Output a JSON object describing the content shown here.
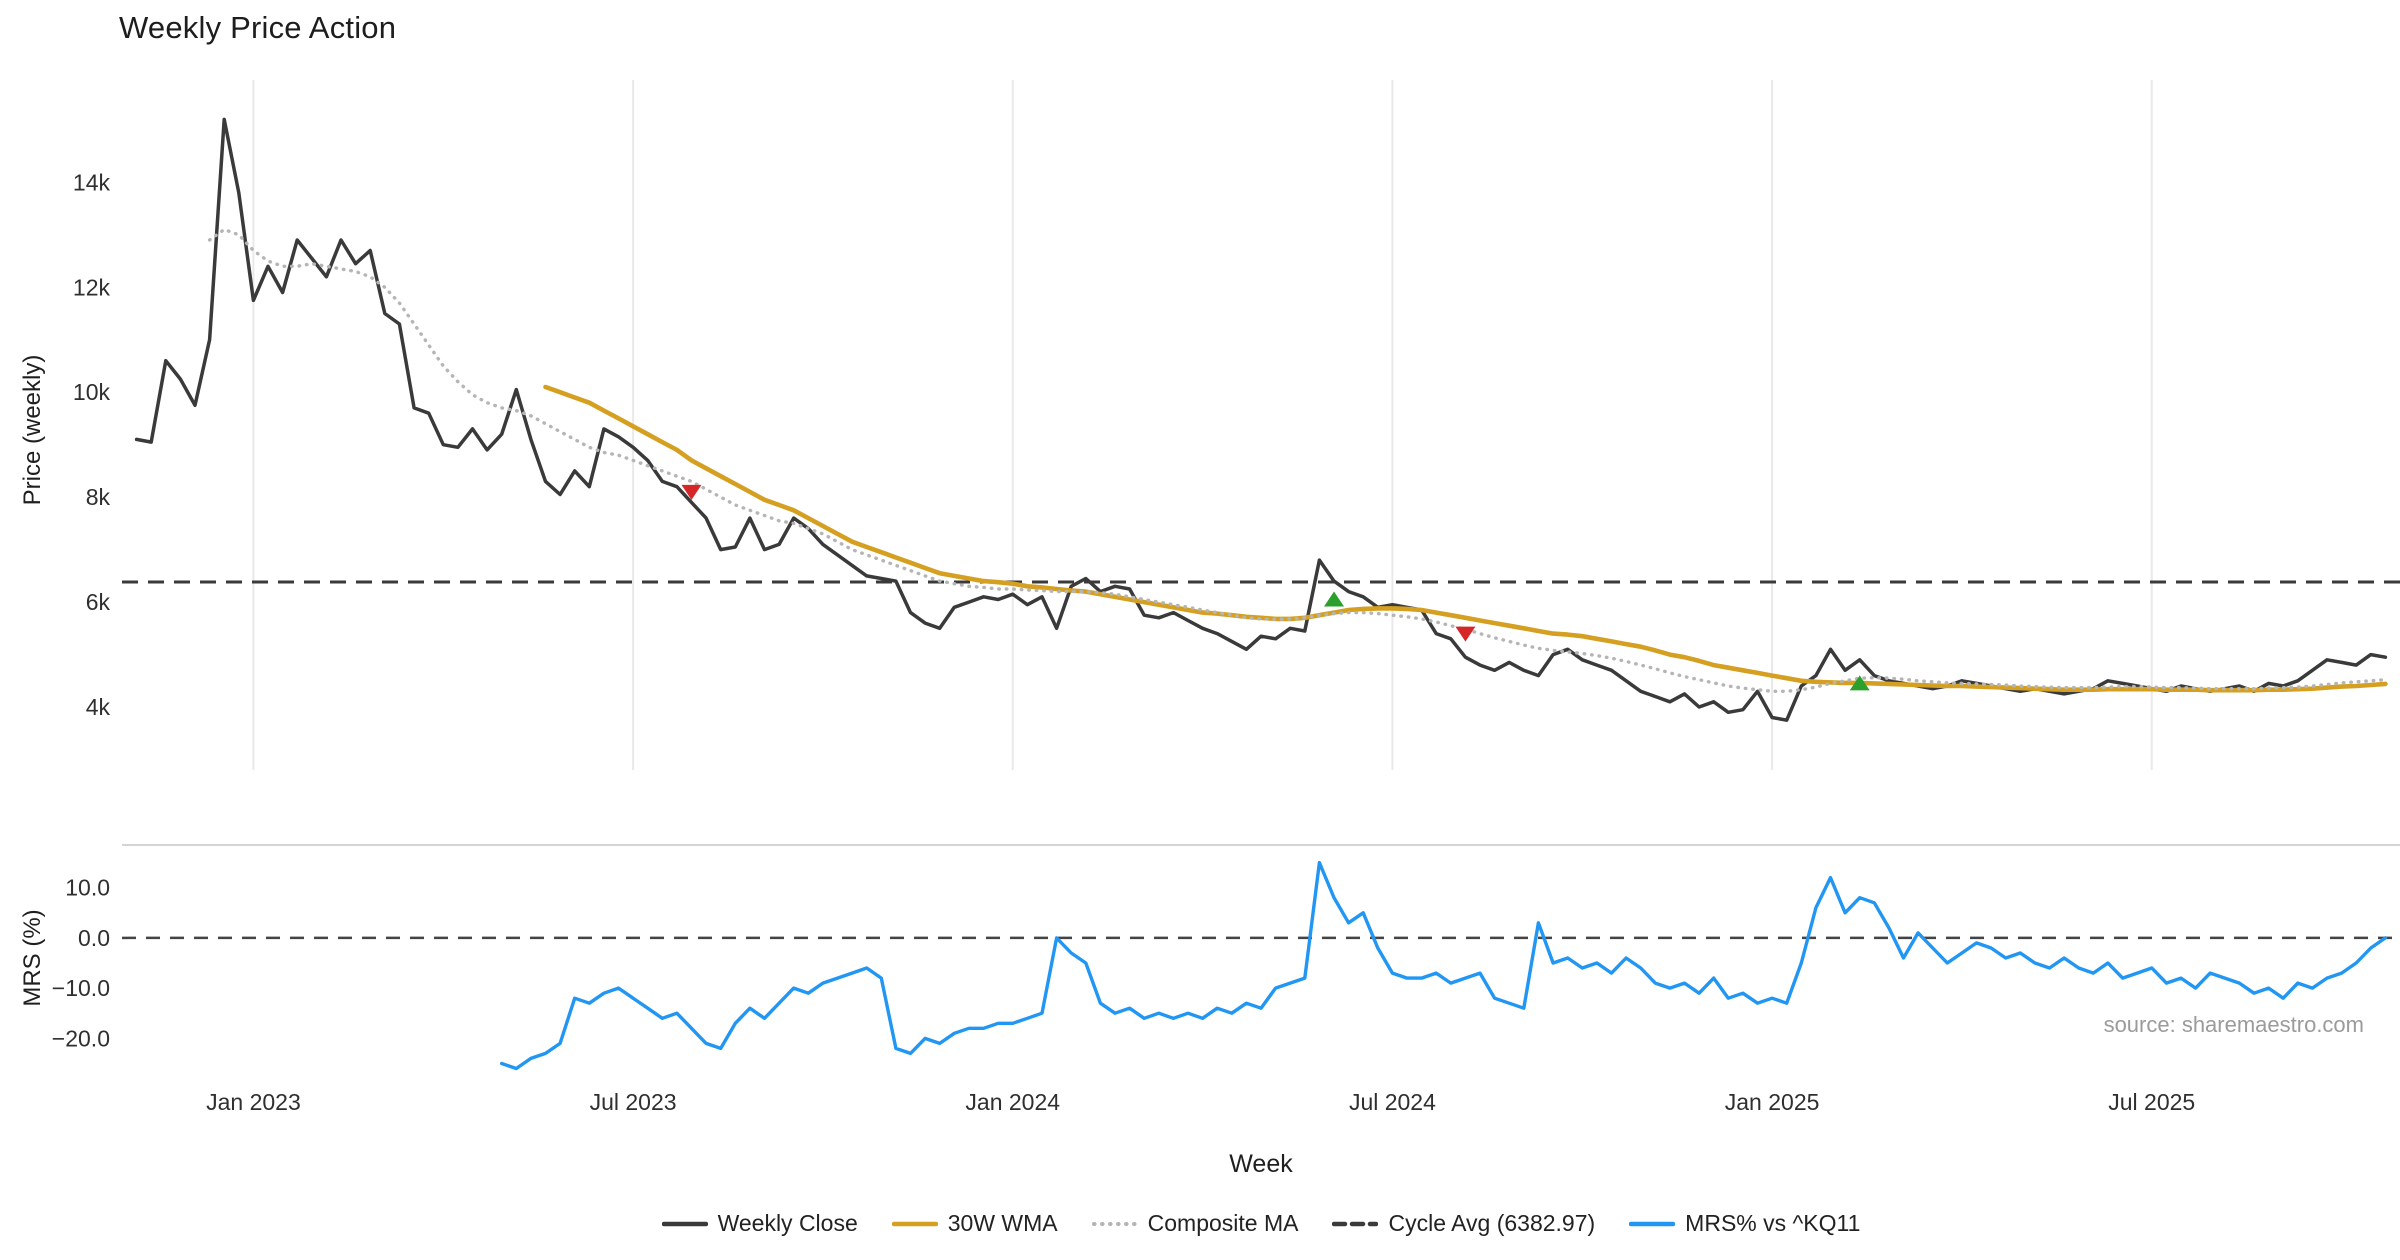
{
  "page": {
    "title": "Weekly Price Action",
    "source_note": "source: sharemaestro.com"
  },
  "axes": {
    "x_title": "Week",
    "price_axis_title": "Price (weekly)",
    "mrs_axis_title": "MRS (%)"
  },
  "legend": [
    {
      "label": "Weekly Close",
      "style": "solid",
      "color": "#3a3a3a"
    },
    {
      "label": "30W WMA",
      "style": "solid",
      "color": "#d5a021"
    },
    {
      "label": "Composite MA",
      "style": "dotted",
      "color": "#b5b5b5"
    },
    {
      "label": "Cycle Avg (6382.97)",
      "style": "dashed",
      "color": "#3a3a3a"
    },
    {
      "label": "MRS% vs ^KQ11",
      "style": "solid",
      "color": "#2196f3"
    }
  ],
  "chart_data": {
    "type": "line",
    "title": "Weekly Price Action",
    "xlabel": "Week",
    "x_unit": "week_index",
    "xlim": [
      0,
      156
    ],
    "x_ticks": [
      {
        "week": 9,
        "label": "Jan 2023"
      },
      {
        "week": 35,
        "label": "Jul 2023"
      },
      {
        "week": 61,
        "label": "Jan 2024"
      },
      {
        "week": 87,
        "label": "Jul 2024"
      },
      {
        "week": 113,
        "label": "Jan 2025"
      },
      {
        "week": 139,
        "label": "Jul 2025"
      }
    ],
    "panels": [
      {
        "name": "price",
        "ylabel": "Price (weekly)",
        "ylim": [
          2800,
          15950
        ],
        "grid_vertical": true,
        "yticks": [
          {
            "value": 4000,
            "label": "4k"
          },
          {
            "value": 6000,
            "label": "6k"
          },
          {
            "value": 8000,
            "label": "8k"
          },
          {
            "value": 10000,
            "label": "10k"
          },
          {
            "value": 12000,
            "label": "12k"
          },
          {
            "value": 14000,
            "label": "14k"
          }
        ],
        "cycle_avg": 6382.97,
        "series": [
          {
            "name": "Weekly Close",
            "color": "#3a3a3a",
            "style": "solid",
            "x_start": 1,
            "x_step": 1,
            "y": [
              9100,
              9050,
              10600,
              10250,
              9750,
              11000,
              15200,
              13800,
              11750,
              12400,
              11900,
              12900,
              12550,
              12200,
              12900,
              12450,
              12700,
              11500,
              11300,
              9700,
              9600,
              9000,
              8950,
              9300,
              8900,
              9200,
              10050,
              9100,
              8300,
              8050,
              8500,
              8200,
              9300,
              9150,
              8950,
              8700,
              8300,
              8200,
              7900,
              7600,
              7000,
              7050,
              7600,
              7000,
              7100,
              7600,
              7400,
              7100,
              6900,
              6700,
              6500,
              6450,
              6400,
              5800,
              5600,
              5500,
              5900,
              6000,
              6100,
              6050,
              6150,
              5950,
              6100,
              5500,
              6300,
              6450,
              6200,
              6300,
              6250,
              5750,
              5700,
              5800,
              5650,
              5500,
              5400,
              5250,
              5100,
              5350,
              5300,
              5500,
              5450,
              6800,
              6400,
              6200,
              6100,
              5900,
              5950,
              5900,
              5850,
              5400,
              5300,
              4950,
              4800,
              4700,
              4850,
              4700,
              4600,
              5000,
              5100,
              4900,
              4800,
              4700,
              4500,
              4300,
              4200,
              4100,
              4250,
              4000,
              4100,
              3900,
              3950,
              4300,
              3800,
              3750,
              4400,
              4600,
              5100,
              4700,
              4900,
              4600,
              4500,
              4450,
              4400,
              4350,
              4400,
              4500,
              4450,
              4400,
              4350,
              4300,
              4350,
              4300,
              4250,
              4300,
              4350,
              4500,
              4450,
              4400,
              4350,
              4300,
              4400,
              4350,
              4300,
              4350,
              4400,
              4300,
              4450,
              4400,
              4500,
              4700,
              4900,
              4850,
              4800,
              5000,
              4950
            ]
          },
          {
            "name": "30W WMA",
            "color": "#d5a021",
            "style": "solid",
            "x_start": 29,
            "x_step": 1,
            "y": [
              10100,
              10000,
              9900,
              9800,
              9650,
              9500,
              9350,
              9200,
              9050,
              8900,
              8700,
              8550,
              8400,
              8250,
              8100,
              7950,
              7850,
              7750,
              7600,
              7450,
              7300,
              7150,
              7050,
              6950,
              6850,
              6750,
              6650,
              6550,
              6500,
              6450,
              6400,
              6380,
              6350,
              6300,
              6280,
              6250,
              6220,
              6200,
              6150,
              6100,
              6050,
              6000,
              5950,
              5900,
              5850,
              5800,
              5780,
              5750,
              5720,
              5700,
              5680,
              5680,
              5700,
              5750,
              5800,
              5850,
              5870,
              5880,
              5880,
              5870,
              5850,
              5800,
              5750,
              5700,
              5650,
              5600,
              5550,
              5500,
              5450,
              5400,
              5380,
              5350,
              5300,
              5250,
              5200,
              5150,
              5080,
              5000,
              4950,
              4880,
              4800,
              4750,
              4700,
              4650,
              4600,
              4550,
              4500,
              4480,
              4470,
              4460,
              4460,
              4450,
              4440,
              4430,
              4420,
              4410,
              4400,
              4400,
              4390,
              4380,
              4370,
              4360,
              4350,
              4340,
              4330,
              4330,
              4330,
              4340,
              4340,
              4340,
              4340,
              4330,
              4330,
              4330,
              4320,
              4320,
              4320,
              4320,
              4330,
              4330,
              4340,
              4350,
              4370,
              4390,
              4400,
              4420,
              4440
            ]
          },
          {
            "name": "Composite MA",
            "color": "#b5b5b5",
            "style": "dotted",
            "x_start": 6,
            "x_step": 1,
            "y": [
              12900,
              13100,
              13000,
              12700,
              12500,
              12400,
              12400,
              12450,
              12400,
              12350,
              12300,
              12200,
              12000,
              11700,
              11300,
              10900,
              10500,
              10200,
              9950,
              9800,
              9700,
              9650,
              9550,
              9400,
              9250,
              9100,
              8950,
              8850,
              8800,
              8700,
              8600,
              8500,
              8400,
              8300,
              8150,
              8000,
              7850,
              7750,
              7650,
              7550,
              7500,
              7400,
              7300,
              7150,
              7000,
              6900,
              6800,
              6700,
              6600,
              6500,
              6400,
              6350,
              6300,
              6280,
              6250,
              6250,
              6230,
              6220,
              6200,
              6200,
              6200,
              6180,
              6150,
              6100,
              6050,
              6000,
              5950,
              5900,
              5850,
              5800,
              5750,
              5700,
              5680,
              5670,
              5680,
              5700,
              5750,
              5780,
              5800,
              5800,
              5780,
              5750,
              5720,
              5680,
              5620,
              5550,
              5480,
              5400,
              5320,
              5250,
              5180,
              5120,
              5080,
              5050,
              5020,
              4980,
              4930,
              4870,
              4800,
              4730,
              4650,
              4580,
              4520,
              4460,
              4400,
              4360,
              4330,
              4300,
              4300,
              4330,
              4380,
              4450,
              4500,
              4550,
              4560,
              4550,
              4530,
              4500,
              4480,
              4460,
              4450,
              4440,
              4430,
              4420,
              4400,
              4390,
              4380,
              4370,
              4370,
              4370,
              4380,
              4390,
              4390,
              4380,
              4370,
              4370,
              4360,
              4350,
              4350,
              4350,
              4350,
              4360,
              4370,
              4380,
              4400,
              4430,
              4460,
              4480,
              4500,
              4520
            ]
          }
        ],
        "markers": [
          {
            "type": "sell",
            "shape": "triangle-down",
            "color": "#d62728",
            "week": 39,
            "value": 8100
          },
          {
            "type": "buy",
            "shape": "triangle-up",
            "color": "#2ca02c",
            "week": 83,
            "value": 6050
          },
          {
            "type": "sell",
            "shape": "triangle-down",
            "color": "#d62728",
            "week": 92,
            "value": 5400
          },
          {
            "type": "buy",
            "shape": "triangle-up",
            "color": "#2ca02c",
            "week": 119,
            "value": 4450
          }
        ]
      },
      {
        "name": "mrs",
        "ylabel": "MRS (%)",
        "ylim": [
          -26.5,
          18.5
        ],
        "zero_line": 0,
        "yticks": [
          {
            "value": 10,
            "label": "10.0"
          },
          {
            "value": 0,
            "label": "0.0"
          },
          {
            "value": -10,
            "label": "−10.0"
          },
          {
            "value": -20,
            "label": "−20.0"
          }
        ],
        "series": [
          {
            "name": "MRS% vs ^KQ11",
            "color": "#2196f3",
            "style": "solid",
            "x_start": 26,
            "x_step": 1,
            "y": [
              -25,
              -26,
              -24,
              -23,
              -21,
              -12,
              -13,
              -11,
              -10,
              -12,
              -14,
              -16,
              -15,
              -18,
              -21,
              -22,
              -17,
              -14,
              -16,
              -13,
              -10,
              -11,
              -9,
              -8,
              -7,
              -6,
              -8,
              -22,
              -23,
              -20,
              -21,
              -19,
              -18,
              -18,
              -17,
              -17,
              -16,
              -15,
              0,
              -3,
              -5,
              -13,
              -15,
              -14,
              -16,
              -15,
              -16,
              -15,
              -16,
              -14,
              -15,
              -13,
              -14,
              -10,
              -9,
              -8,
              15,
              8,
              3,
              5,
              -2,
              -7,
              -8,
              -8,
              -7,
              -9,
              -8,
              -7,
              -12,
              -13,
              -14,
              3,
              -5,
              -4,
              -6,
              -5,
              -7,
              -4,
              -6,
              -9,
              -10,
              -9,
              -11,
              -8,
              -12,
              -11,
              -13,
              -12,
              -13,
              -5,
              6,
              12,
              5,
              8,
              7,
              2,
              -4,
              1,
              -2,
              -5,
              -3,
              -1,
              -2,
              -4,
              -3,
              -5,
              -6,
              -4,
              -6,
              -7,
              -5,
              -8,
              -7,
              -6,
              -9,
              -8,
              -10,
              -7,
              -8,
              -9,
              -11,
              -10,
              -12,
              -9,
              -10,
              -8,
              -7,
              -5,
              -2,
              0
            ]
          }
        ]
      }
    ]
  }
}
